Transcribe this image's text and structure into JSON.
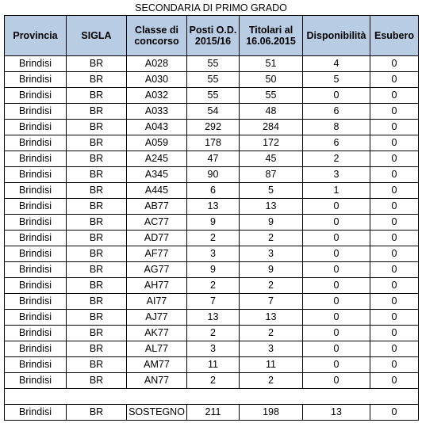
{
  "title": "SECONDARIA DI PRIMO GRADO",
  "headers": {
    "provincia": "Provincia",
    "sigla": "SIGLA",
    "classe": "Classe di concorso",
    "posti": "Posti O.D. 2015/16",
    "titolari": "Titolari al 16.06.2015",
    "disponibilita": "Disponibilità",
    "esubero": "Esubero"
  },
  "rows": [
    {
      "provincia": "Brindisi",
      "sigla": "BR",
      "classe": "A028",
      "posti": "55",
      "titolari": "51",
      "disp": "4",
      "esubero": "0"
    },
    {
      "provincia": "Brindisi",
      "sigla": "BR",
      "classe": "A030",
      "posti": "55",
      "titolari": "50",
      "disp": "5",
      "esubero": "0"
    },
    {
      "provincia": "Brindisi",
      "sigla": "BR",
      "classe": "A032",
      "posti": "55",
      "titolari": "55",
      "disp": "0",
      "esubero": "0"
    },
    {
      "provincia": "Brindisi",
      "sigla": "BR",
      "classe": "A033",
      "posti": "54",
      "titolari": "48",
      "disp": "6",
      "esubero": "0"
    },
    {
      "provincia": "Brindisi",
      "sigla": "BR",
      "classe": "A043",
      "posti": "292",
      "titolari": "284",
      "disp": "8",
      "esubero": "0"
    },
    {
      "provincia": "Brindisi",
      "sigla": "BR",
      "classe": "A059",
      "posti": "178",
      "titolari": "172",
      "disp": "6",
      "esubero": "0"
    },
    {
      "provincia": "Brindisi",
      "sigla": "BR",
      "classe": "A245",
      "posti": "47",
      "titolari": "45",
      "disp": "2",
      "esubero": "0"
    },
    {
      "provincia": "Brindisi",
      "sigla": "BR",
      "classe": "A345",
      "posti": "90",
      "titolari": "87",
      "disp": "3",
      "esubero": "0"
    },
    {
      "provincia": "Brindisi",
      "sigla": "BR",
      "classe": "A445",
      "posti": "6",
      "titolari": "5",
      "disp": "1",
      "esubero": "0"
    },
    {
      "provincia": "Brindisi",
      "sigla": "BR",
      "classe": "AB77",
      "posti": "13",
      "titolari": "13",
      "disp": "0",
      "esubero": "0"
    },
    {
      "provincia": "Brindisi",
      "sigla": "BR",
      "classe": "AC77",
      "posti": "9",
      "titolari": "9",
      "disp": "0",
      "esubero": "0"
    },
    {
      "provincia": "Brindisi",
      "sigla": "BR",
      "classe": "AD77",
      "posti": "2",
      "titolari": "2",
      "disp": "0",
      "esubero": "0"
    },
    {
      "provincia": "Brindisi",
      "sigla": "BR",
      "classe": "AF77",
      "posti": "3",
      "titolari": "3",
      "disp": "0",
      "esubero": "0"
    },
    {
      "provincia": "Brindisi",
      "sigla": "BR",
      "classe": "AG77",
      "posti": "9",
      "titolari": "9",
      "disp": "0",
      "esubero": "0"
    },
    {
      "provincia": "Brindisi",
      "sigla": "BR",
      "classe": "AH77",
      "posti": "2",
      "titolari": "2",
      "disp": "0",
      "esubero": "0"
    },
    {
      "provincia": "Brindisi",
      "sigla": "BR",
      "classe": "AI77",
      "posti": "7",
      "titolari": "7",
      "disp": "0",
      "esubero": "0"
    },
    {
      "provincia": "Brindisi",
      "sigla": "BR",
      "classe": "AJ77",
      "posti": "13",
      "titolari": "13",
      "disp": "0",
      "esubero": "0"
    },
    {
      "provincia": "Brindisi",
      "sigla": "BR",
      "classe": "AK77",
      "posti": "2",
      "titolari": "2",
      "disp": "0",
      "esubero": "0"
    },
    {
      "provincia": "Brindisi",
      "sigla": "BR",
      "classe": "AL77",
      "posti": "3",
      "titolari": "3",
      "disp": "0",
      "esubero": "0"
    },
    {
      "provincia": "Brindisi",
      "sigla": "BR",
      "classe": "AM77",
      "posti": "11",
      "titolari": "11",
      "disp": "0",
      "esubero": "0"
    },
    {
      "provincia": "Brindisi",
      "sigla": "BR",
      "classe": "AN77",
      "posti": "2",
      "titolari": "2",
      "disp": "0",
      "esubero": "0"
    }
  ],
  "sostegno": {
    "provincia": "Brindisi",
    "sigla": "BR",
    "classe": "SOSTEGNO",
    "posti": "211",
    "titolari": "198",
    "disp": "13",
    "esubero": "0"
  },
  "colors": {
    "header_bg": "#b8cce4",
    "border": "#000000"
  }
}
